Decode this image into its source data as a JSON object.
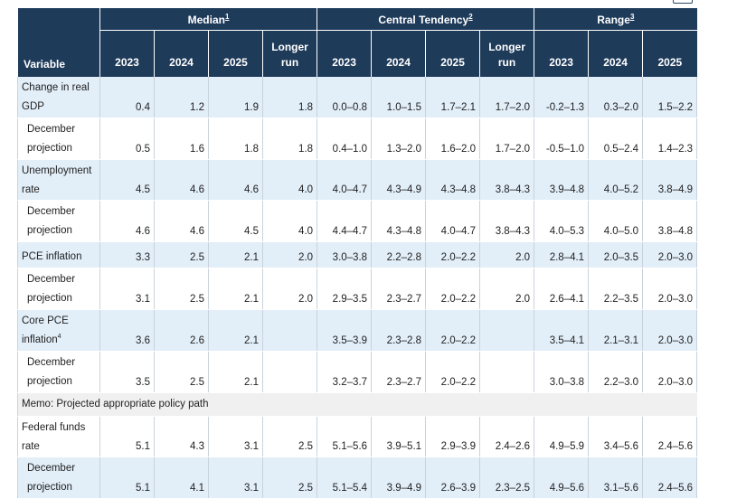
{
  "table": {
    "groups": {
      "variable": "Variable",
      "median": "Median",
      "median_note": "1",
      "central": "Central Tendency",
      "central_note": "2",
      "range": "Range",
      "range_note": "3"
    },
    "subheaders": {
      "median": [
        "2023",
        "2024",
        "2025",
        "Longer run"
      ],
      "central": [
        "2023",
        "2024",
        "2025",
        "Longer run"
      ],
      "range": [
        "2023",
        "2024",
        "2025"
      ]
    },
    "rows": [
      {
        "label": "Change in real GDP",
        "note": "",
        "values": [
          "0.4",
          "1.2",
          "1.9",
          "1.8",
          "0.0–0.8",
          "1.0–1.5",
          "1.7–2.1",
          "1.7–2.0",
          "-0.2–1.3",
          "0.3–2.0",
          "1.5–2.2"
        ]
      },
      {
        "label": "December projection",
        "note": "",
        "values": [
          "0.5",
          "1.6",
          "1.8",
          "1.8",
          "0.4–1.0",
          "1.3–2.0",
          "1.6–2.0",
          "1.7–2.0",
          "-0.5–1.0",
          "0.5–2.4",
          "1.4–2.3"
        ]
      },
      {
        "label": "Unemployment rate",
        "note": "",
        "values": [
          "4.5",
          "4.6",
          "4.6",
          "4.0",
          "4.0–4.7",
          "4.3–4.9",
          "4.3–4.8",
          "3.8–4.3",
          "3.9–4.8",
          "4.0–5.2",
          "3.8–4.9"
        ]
      },
      {
        "label": "December projection",
        "note": "",
        "values": [
          "4.6",
          "4.6",
          "4.5",
          "4.0",
          "4.4–4.7",
          "4.3–4.8",
          "4.0–4.7",
          "3.8–4.3",
          "4.0–5.3",
          "4.0–5.0",
          "3.8–4.8"
        ]
      },
      {
        "label": "PCE inflation",
        "note": "",
        "values": [
          "3.3",
          "2.5",
          "2.1",
          "2.0",
          "3.0–3.8",
          "2.2–2.8",
          "2.0–2.2",
          "2.0",
          "2.8–4.1",
          "2.0–3.5",
          "2.0–3.0"
        ]
      },
      {
        "label": "December projection",
        "note": "",
        "values": [
          "3.1",
          "2.5",
          "2.1",
          "2.0",
          "2.9–3.5",
          "2.3–2.7",
          "2.0–2.2",
          "2.0",
          "2.6–4.1",
          "2.2–3.5",
          "2.0–3.0"
        ]
      },
      {
        "label": "Core PCE inflation",
        "note": "4",
        "values": [
          "3.6",
          "2.6",
          "2.1",
          "",
          "3.5–3.9",
          "2.3–2.8",
          "2.0–2.2",
          "",
          "3.5–4.1",
          "2.1–3.1",
          "2.0–3.0"
        ]
      },
      {
        "label": "December projection",
        "note": "",
        "values": [
          "3.5",
          "2.5",
          "2.1",
          "",
          "3.2–3.7",
          "2.3–2.7",
          "2.0–2.2",
          "",
          "3.0–3.8",
          "2.2–3.0",
          "2.0–3.0"
        ]
      }
    ],
    "memo": "Memo: Projected appropriate policy path",
    "memo_rows": [
      {
        "label": "Federal funds rate",
        "note": "",
        "values": [
          "5.1",
          "4.3",
          "3.1",
          "2.5",
          "5.1–5.6",
          "3.9–5.1",
          "2.9–3.9",
          "2.4–2.6",
          "4.9–5.9",
          "3.4–5.6",
          "2.4–5.6"
        ]
      },
      {
        "label": "December projection",
        "note": "",
        "values": [
          "5.1",
          "4.1",
          "3.1",
          "2.5",
          "5.1–5.4",
          "3.9–4.9",
          "2.6–3.9",
          "2.3–2.5",
          "4.9–5.6",
          "3.1–5.6",
          "2.4–5.6"
        ]
      }
    ]
  }
}
